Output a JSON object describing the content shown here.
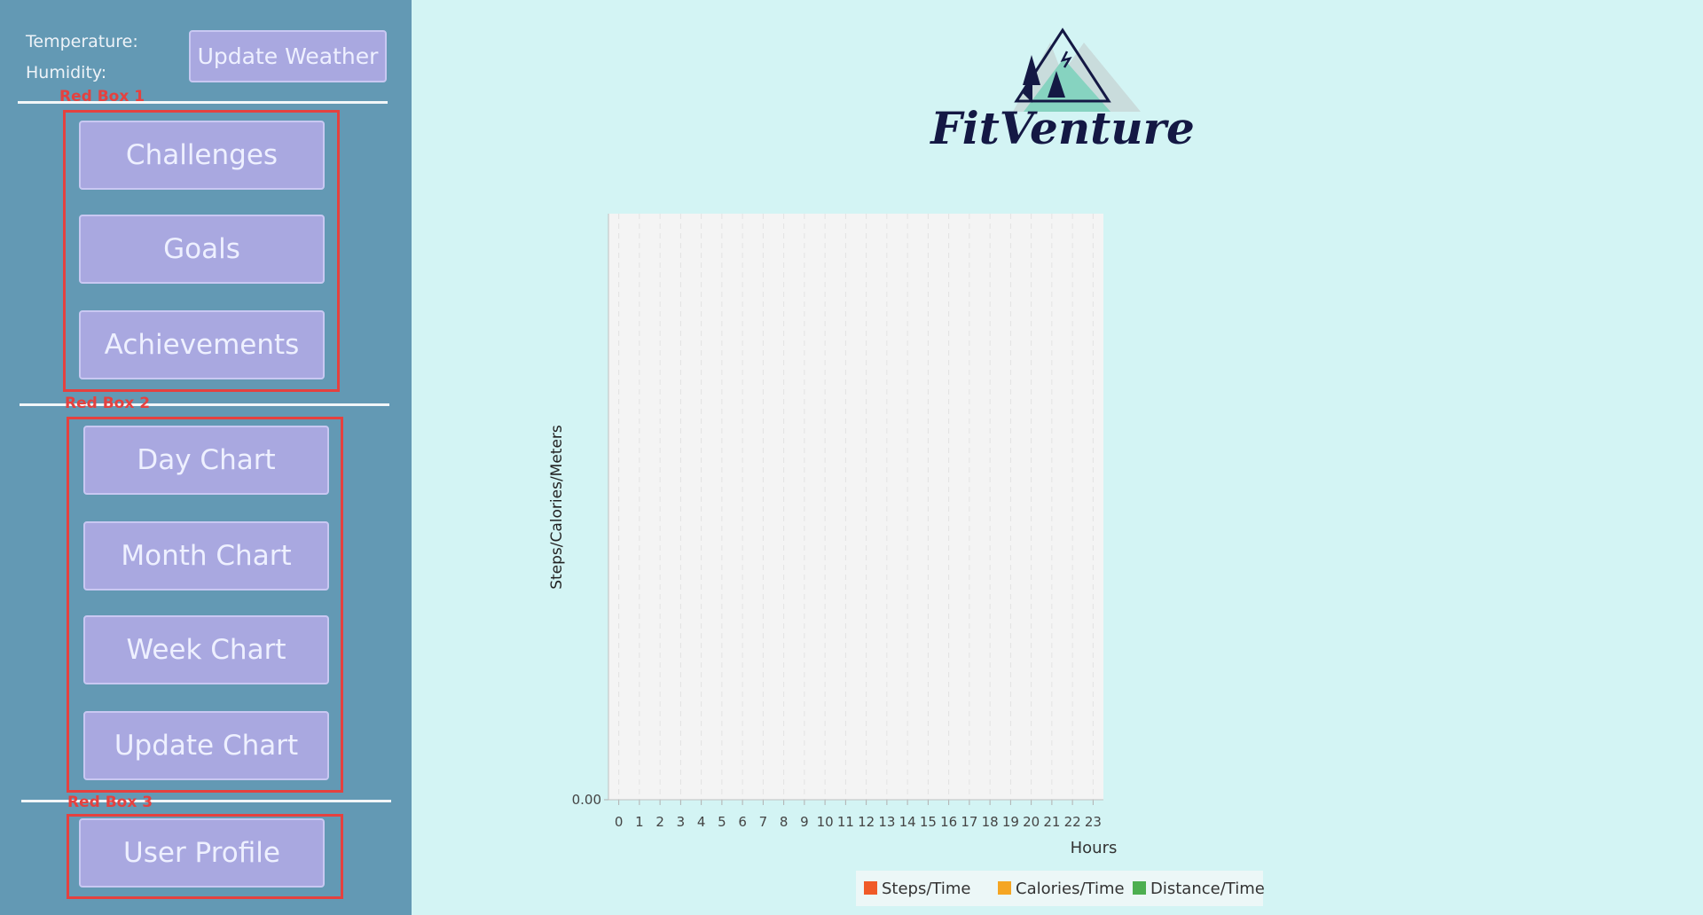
{
  "sidebar": {
    "weather": {
      "temperature_label": "Temperature:",
      "humidity_label": "Humidity:",
      "button": "Update Weather"
    },
    "groups": [
      {
        "label": "Red Box 1",
        "buttons": [
          "Challenges",
          "Goals",
          "Achievements"
        ]
      },
      {
        "label": "Red Box 2",
        "buttons": [
          "Day Chart",
          "Month Chart",
          "Week Chart",
          "Update Chart"
        ]
      },
      {
        "label": "Red Box 3",
        "buttons": [
          "User Profile"
        ]
      }
    ]
  },
  "logo": {
    "text": "FitVenture"
  },
  "chart": {
    "type": "line",
    "x_label": "Hours",
    "y_label": "Steps/Calories/Meters",
    "categories": [
      "0",
      "1",
      "2",
      "3",
      "4",
      "5",
      "6",
      "7",
      "8",
      "9",
      "10",
      "11",
      "12",
      "13",
      "14",
      "15",
      "16",
      "17",
      "18",
      "19",
      "20",
      "21",
      "22",
      "23"
    ],
    "yticks": [
      {
        "value": 0,
        "label": "0.00"
      }
    ],
    "grid": true,
    "series": [
      {
        "name": "Steps/Time",
        "color": "#f05a28"
      },
      {
        "name": "Calories/Time",
        "color": "#f5a623"
      },
      {
        "name": "Distance/Time",
        "color": "#4caf50"
      }
    ]
  }
}
